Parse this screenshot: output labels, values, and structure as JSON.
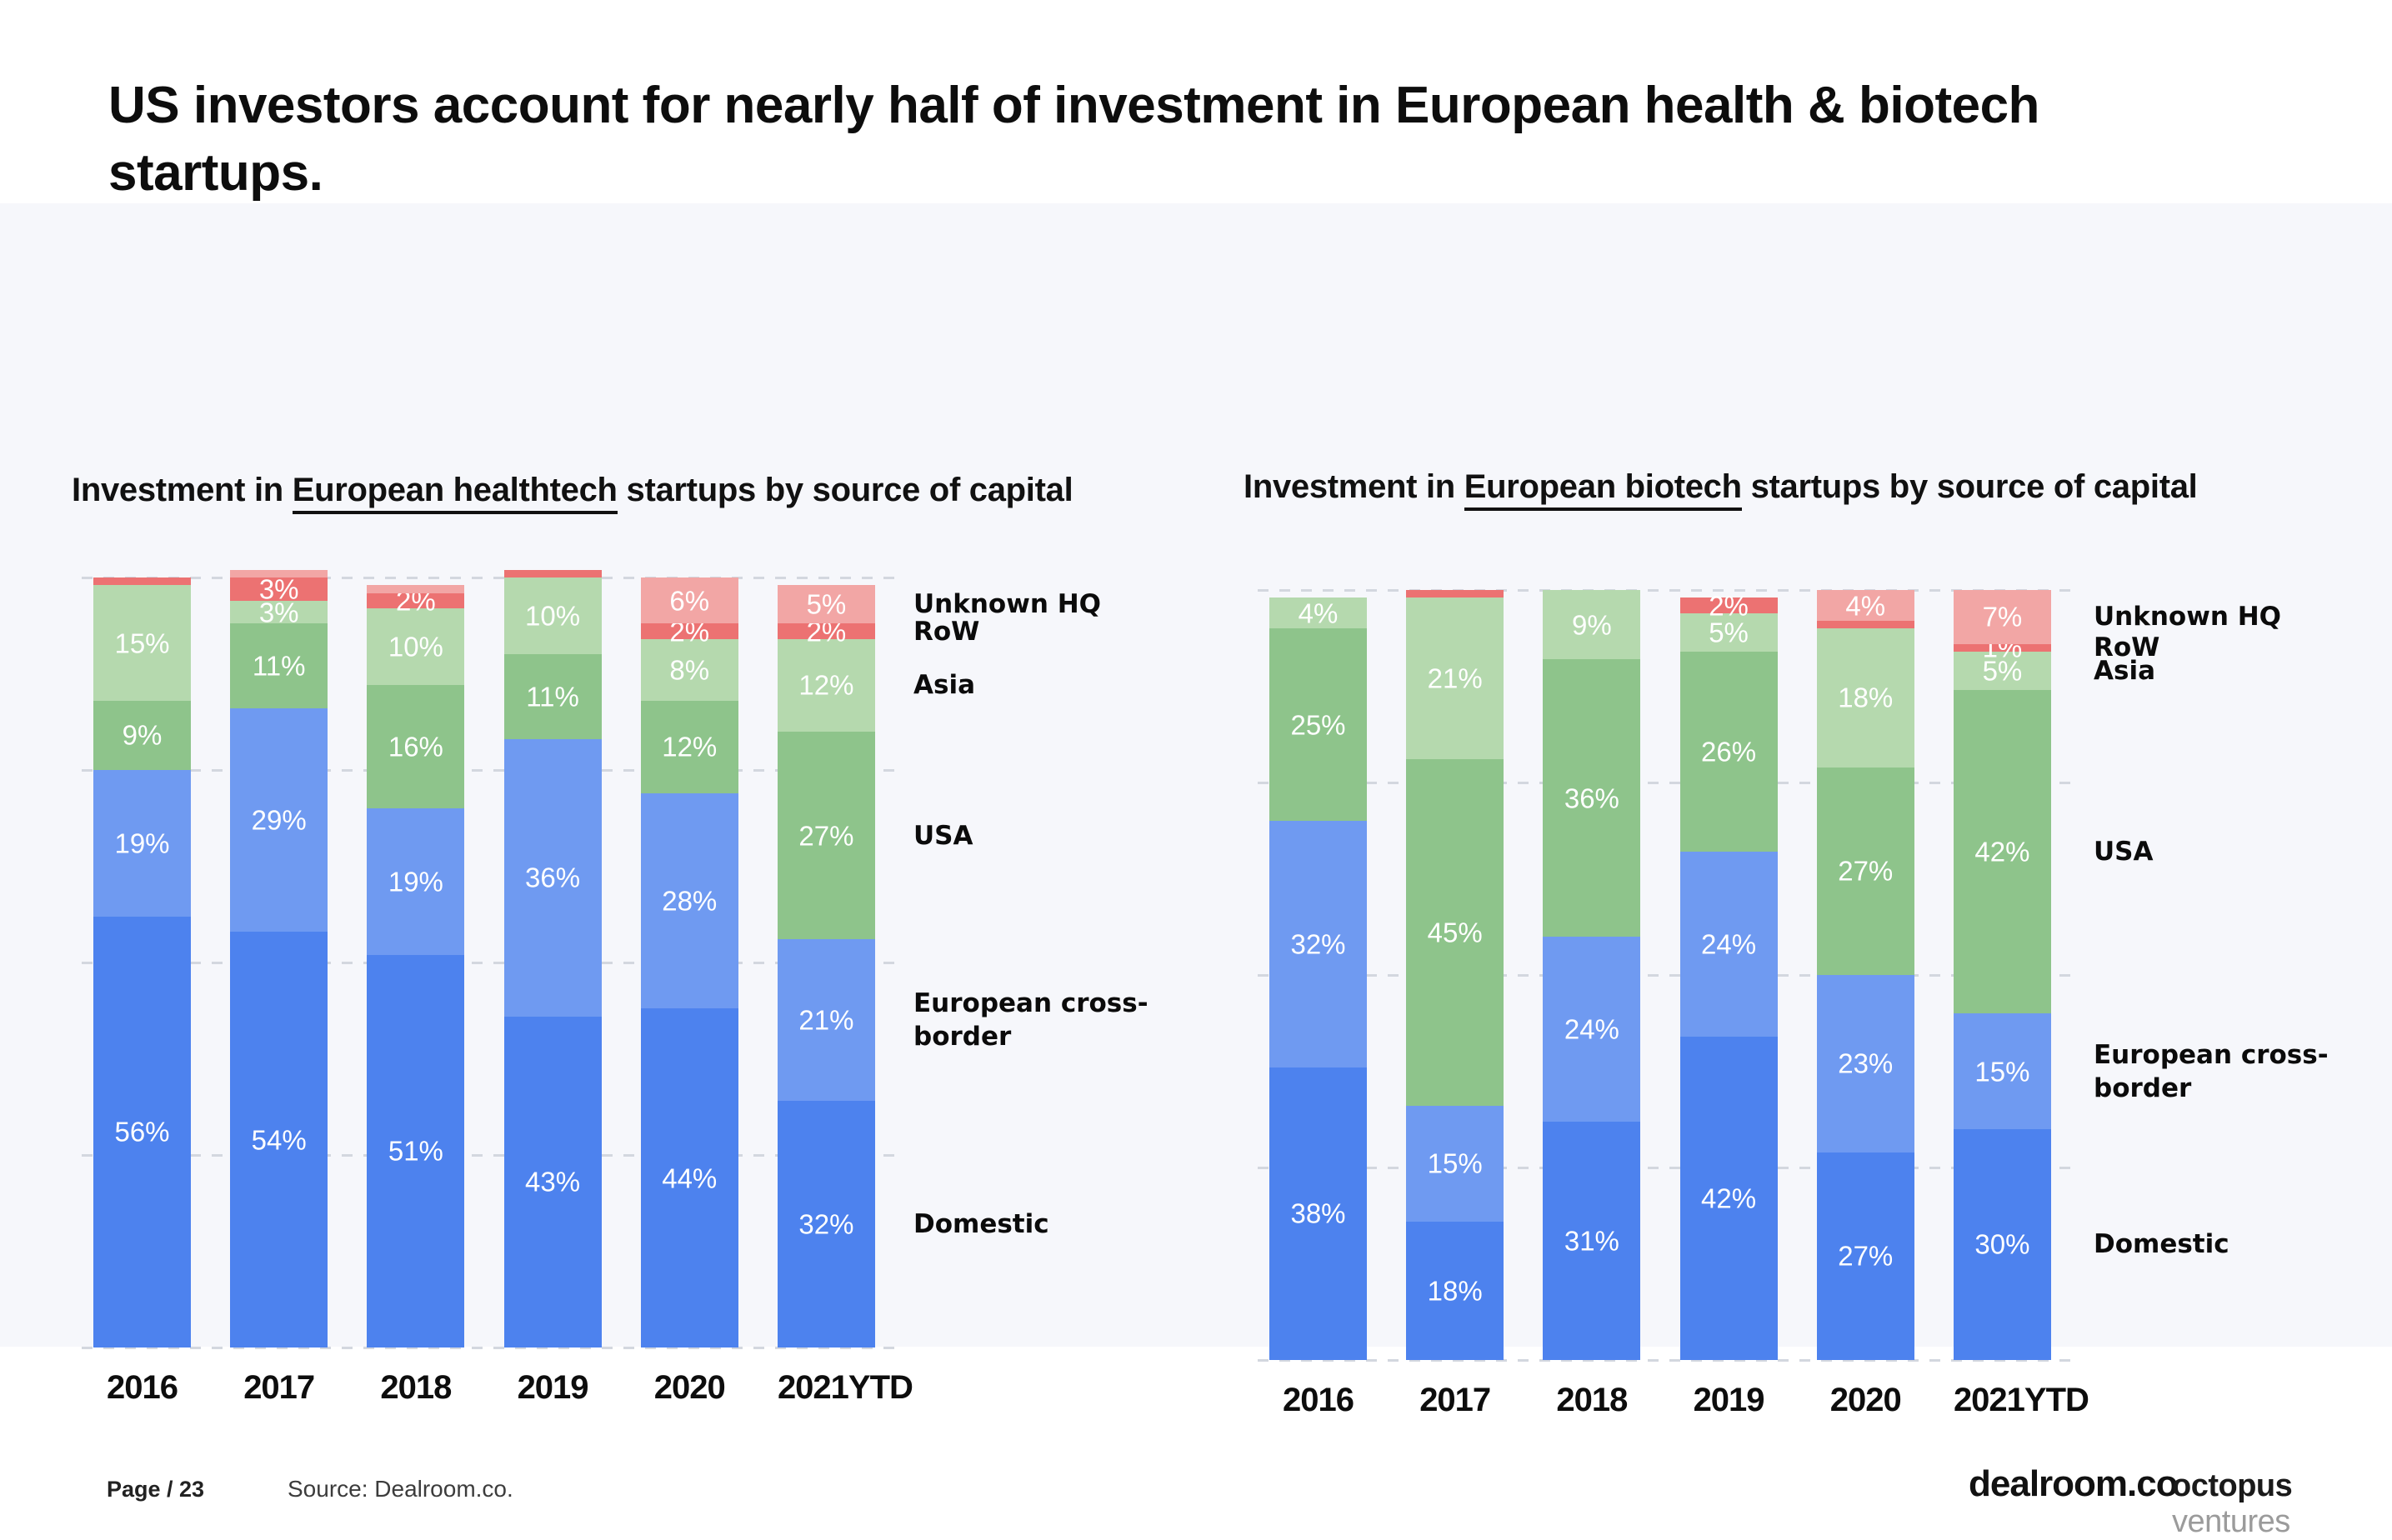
{
  "slide": {
    "title": "US investors account for nearly half of investment in European health & biotech startups.",
    "footer": {
      "page_label": "Page / 23",
      "source": "Source: Dealroom.co.",
      "logo_dealroom": "dealroom.co",
      "logo_octopus_bold": "octopus",
      "logo_octopus_light": "ventures"
    }
  },
  "chart_data": [
    {
      "type": "bar",
      "stacked": true,
      "units": "percent",
      "ylim": [
        0,
        100
      ],
      "grid": "dashed horizontal at 0/25/50/75/100",
      "legend_position": "right",
      "title_prefix": "Investment in ",
      "title_underline": "European healthtech",
      "title_suffix": " startups by source of capital",
      "categories": [
        "2016",
        "2017",
        "2018",
        "2019",
        "2020",
        "2021YTD"
      ],
      "legend": [
        {
          "label": "Unknown HQ",
          "series_index": 5
        },
        {
          "label": "RoW",
          "series_index": 4
        },
        {
          "label": "Asia",
          "series_index": 3
        },
        {
          "label": "USA",
          "series_index": 2
        },
        {
          "label": "European cross-border",
          "series_index": 1
        },
        {
          "label": "Domestic",
          "series_index": 0
        }
      ],
      "series": [
        {
          "name": "Domestic",
          "color": "#4d82ee",
          "values": [
            56,
            54,
            51,
            43,
            44,
            32
          ],
          "labels": [
            "56%",
            "54%",
            "51%",
            "43%",
            "44%",
            "32%"
          ]
        },
        {
          "name": "European cross-border",
          "color": "#6f9af1",
          "values": [
            19,
            29,
            19,
            36,
            28,
            21
          ],
          "labels": [
            "19%",
            "29%",
            "19%",
            "36%",
            "28%",
            "21%"
          ]
        },
        {
          "name": "USA",
          "color": "#8ec48b",
          "values": [
            9,
            11,
            16,
            11,
            12,
            27
          ],
          "labels": [
            "9%",
            "11%",
            "16%",
            "11%",
            "12%",
            "27%"
          ]
        },
        {
          "name": "Asia",
          "color": "#b5d9ae",
          "values": [
            15,
            3,
            10,
            10,
            8,
            12
          ],
          "labels": [
            "15%",
            "3%",
            "10%",
            "10%",
            "8%",
            "12%"
          ]
        },
        {
          "name": "RoW",
          "color": "#ec7272",
          "values": [
            1,
            3,
            2,
            1,
            2,
            2
          ],
          "labels": [
            "",
            "3%",
            "2%",
            "",
            "2%",
            "2%"
          ]
        },
        {
          "name": "Unknown HQ",
          "color": "#f2a6a5",
          "values": [
            0,
            1,
            1,
            0,
            6,
            5
          ],
          "labels": [
            "",
            "",
            "",
            "",
            "6%",
            "5%"
          ]
        }
      ]
    },
    {
      "type": "bar",
      "stacked": true,
      "units": "percent",
      "ylim": [
        0,
        100
      ],
      "grid": "dashed horizontal at 0/25/50/75/100",
      "legend_position": "right",
      "title_prefix": "Investment in ",
      "title_underline": "European biotech",
      "title_suffix": " startups by source of capital",
      "categories": [
        "2016",
        "2017",
        "2018",
        "2019",
        "2020",
        "2021YTD"
      ],
      "legend": [
        {
          "label": "Unknown HQ",
          "series_index": 5
        },
        {
          "label": "RoW",
          "series_index": 4
        },
        {
          "label": "Asia",
          "series_index": 3
        },
        {
          "label": "USA",
          "series_index": 2
        },
        {
          "label": "European cross-border",
          "series_index": 1
        },
        {
          "label": "Domestic",
          "series_index": 0
        }
      ],
      "series": [
        {
          "name": "Domestic",
          "color": "#4d82ee",
          "values": [
            38,
            18,
            31,
            42,
            27,
            30
          ],
          "labels": [
            "38%",
            "18%",
            "31%",
            "42%",
            "27%",
            "30%"
          ]
        },
        {
          "name": "European cross-border",
          "color": "#6f9af1",
          "values": [
            32,
            15,
            24,
            24,
            23,
            15
          ],
          "labels": [
            "32%",
            "15%",
            "24%",
            "24%",
            "23%",
            "15%"
          ]
        },
        {
          "name": "USA",
          "color": "#8ec48b",
          "values": [
            25,
            45,
            36,
            26,
            27,
            42
          ],
          "labels": [
            "25%",
            "45%",
            "36%",
            "26%",
            "27%",
            "42%"
          ]
        },
        {
          "name": "Asia",
          "color": "#b5d9ae",
          "values": [
            4,
            21,
            9,
            5,
            18,
            5
          ],
          "labels": [
            "4%",
            "21%",
            "9%",
            "5%",
            "18%",
            "5%"
          ]
        },
        {
          "name": "RoW",
          "color": "#ec7272",
          "values": [
            0,
            1,
            0,
            2,
            1,
            1
          ],
          "labels": [
            "",
            "",
            "",
            "2%",
            "",
            "1%"
          ]
        },
        {
          "name": "Unknown HQ",
          "color": "#f2a6a5",
          "values": [
            0,
            0,
            0,
            0,
            4,
            7
          ],
          "labels": [
            "",
            "",
            "",
            "",
            "4%",
            "7%"
          ]
        }
      ]
    }
  ]
}
